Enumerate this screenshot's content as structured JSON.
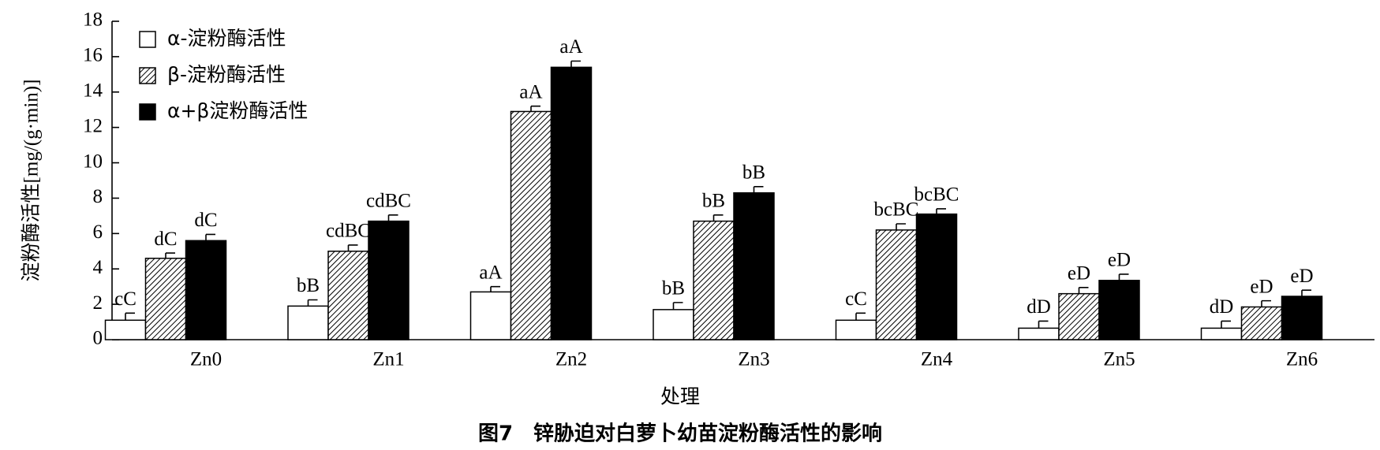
{
  "chart_data": {
    "type": "bar",
    "y_label": "淀粉酶活性[mg/(g·min)]",
    "x_label": "处理",
    "caption": "图7　锌胁迫对白萝卜幼苗淀粉酶活性的影响",
    "categories": [
      "Zn0",
      "Zn1",
      "Zn2",
      "Zn3",
      "Zn4",
      "Zn5",
      "Zn6"
    ],
    "series": [
      {
        "name": "α-淀粉酶活性",
        "color": "#ffffff",
        "hatch": false,
        "values": [
          1.1,
          1.9,
          2.7,
          1.7,
          1.1,
          0.65,
          0.65
        ],
        "errors": [
          0.4,
          0.35,
          0.3,
          0.4,
          0.4,
          0.4,
          0.4
        ],
        "labels": [
          "cC",
          "bB",
          "aA",
          "bB",
          "cC",
          "dD",
          "dD"
        ]
      },
      {
        "name": "β-淀粉酶活性",
        "color": "#ffffff",
        "hatch": true,
        "values": [
          4.6,
          5.0,
          12.9,
          6.7,
          6.2,
          2.6,
          1.85
        ],
        "errors": [
          0.3,
          0.35,
          0.3,
          0.35,
          0.35,
          0.35,
          0.35
        ],
        "labels": [
          "dC",
          "cdBC",
          "aA",
          "bB",
          "bcBC",
          "eD",
          "eD"
        ]
      },
      {
        "name": "α+β淀粉酶活性",
        "color": "#000000",
        "hatch": false,
        "values": [
          5.6,
          6.7,
          15.4,
          8.3,
          7.1,
          3.35,
          2.45
        ],
        "errors": [
          0.35,
          0.35,
          0.35,
          0.35,
          0.3,
          0.35,
          0.35
        ],
        "labels": [
          "dC",
          "cdBC",
          "aA",
          "bB",
          "bcBC",
          "eD",
          "eD"
        ]
      }
    ],
    "ylim": [
      0,
      18
    ],
    "yticks": [
      0,
      2,
      4,
      6,
      8,
      10,
      12,
      14,
      16,
      18
    ],
    "grid": false
  }
}
